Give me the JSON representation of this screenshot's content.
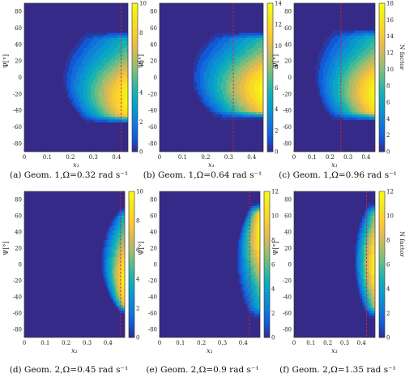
{
  "chart_data": [
    {
      "type": "heatmap",
      "caption": "(a) Geom. 1,Ω=0.32 rad s⁻¹",
      "xlabel": "x₁",
      "ylabel": "Ψ[°]",
      "xlim": [
        0,
        0.45
      ],
      "ylim": [
        -90,
        90
      ],
      "xticks": [
        "0",
        "0.1",
        "0.2",
        "0.3",
        "0.4"
      ],
      "yticks": [
        "-80",
        "-60",
        "-40",
        "-20",
        "0",
        "20",
        "40",
        "60",
        "80"
      ],
      "colorbar": {
        "min": 0,
        "max": 10,
        "ticks": [
          "0",
          "2",
          "4",
          "6",
          "8",
          "10"
        ],
        "label": ""
      },
      "dashed_line_x": 0.42,
      "region": {
        "x_onset_mid": 0.17,
        "x_onset_edge": 0.27,
        "psi_top": 55,
        "psi_bottom": -55,
        "peak_psi": -25,
        "peak_value": 10
      }
    },
    {
      "type": "heatmap",
      "caption": "(b) Geom. 1,Ω=0.64 rad s⁻¹",
      "xlabel": "x₁",
      "ylabel": "Ψ[°]",
      "xlim": [
        0,
        0.45
      ],
      "ylim": [
        -90,
        90
      ],
      "xticks": [
        "0",
        "0.1",
        "0.2",
        "0.3",
        "0.4"
      ],
      "yticks": [
        "-80",
        "-60",
        "-40",
        "-20",
        "0",
        "20",
        "40",
        "60",
        "80"
      ],
      "colorbar": {
        "min": 0,
        "max": 14,
        "ticks": [
          "0",
          "2",
          "4",
          "6",
          "8",
          "10",
          "12",
          "14"
        ],
        "label": ""
      },
      "dashed_line_x": 0.32,
      "region": {
        "x_onset_mid": 0.14,
        "x_onset_edge": 0.25,
        "psi_top": 55,
        "psi_bottom": -50,
        "peak_psi": -15,
        "peak_value": 14
      }
    },
    {
      "type": "heatmap",
      "caption": "(c) Geom. 1,Ω=0.96 rad s⁻¹",
      "xlabel": "x₁",
      "ylabel": "Ψ[°]",
      "xlim": [
        0,
        0.45
      ],
      "ylim": [
        -90,
        90
      ],
      "xticks": [
        "0",
        "0.1",
        "0.2",
        "0.3",
        "0.4"
      ],
      "yticks": [
        "-80",
        "-60",
        "-40",
        "-20",
        "0",
        "20",
        "40",
        "60",
        "80"
      ],
      "colorbar": {
        "min": 0,
        "max": 18,
        "ticks": [
          "0",
          "2",
          "4",
          "6",
          "8",
          "10",
          "12",
          "14",
          "16",
          "18"
        ],
        "label": "N factor"
      },
      "dashed_line_x": 0.26,
      "region": {
        "x_onset_mid": 0.12,
        "x_onset_edge": 0.22,
        "psi_top": 58,
        "psi_bottom": -52,
        "peak_psi": -20,
        "peak_value": 18
      }
    },
    {
      "type": "heatmap",
      "caption": "(d) Geom. 2,Ω=0.45 rad s⁻¹",
      "xlabel": "x₁",
      "ylabel": "Ψ[°]",
      "xlim": [
        0,
        0.48
      ],
      "ylim": [
        -90,
        90
      ],
      "xticks": [
        "0",
        "0.1",
        "0.2",
        "0.3",
        "0.4"
      ],
      "yticks": [
        "-80",
        "-60",
        "-40",
        "-20",
        "0",
        "20",
        "40",
        "60",
        "80"
      ],
      "colorbar": {
        "min": 0,
        "max": 10,
        "ticks": [
          "0",
          "2",
          "4",
          "6",
          "8",
          "10"
        ],
        "label": ""
      },
      "dashed_line_x": 0.46,
      "region": {
        "x_onset_mid": 0.37,
        "x_onset_edge": 0.46,
        "psi_top": 70,
        "psi_bottom": -60,
        "peak_psi": -20,
        "peak_value": 10
      }
    },
    {
      "type": "heatmap",
      "caption": "(e) Geom. 2,Ω=0.9 rad s⁻¹",
      "xlabel": "x₁",
      "ylabel": "Ψ[°]",
      "xlim": [
        0,
        0.48
      ],
      "ylim": [
        -90,
        90
      ],
      "xticks": [
        "0",
        "0.1",
        "0.2",
        "0.3",
        "0.4"
      ],
      "yticks": [
        "-80",
        "-60",
        "-40",
        "-20",
        "0",
        "20",
        "40",
        "60",
        "80"
      ],
      "colorbar": {
        "min": 0,
        "max": 12,
        "ticks": [
          "0",
          "2",
          "4",
          "6",
          "8",
          "10",
          "12"
        ],
        "label": ""
      },
      "dashed_line_x": 0.43,
      "region": {
        "x_onset_mid": 0.37,
        "x_onset_edge": 0.44,
        "psi_top": 75,
        "psi_bottom": -65,
        "peak_psi": 40,
        "peak_value": 12
      }
    },
    {
      "type": "heatmap",
      "caption": "(f) Geom. 2,Ω=1.35 rad s⁻¹",
      "xlabel": "x₁",
      "ylabel": "Ψ[°]",
      "xlim": [
        0,
        0.48
      ],
      "ylim": [
        -90,
        90
      ],
      "xticks": [
        "0",
        "0.1",
        "0.2",
        "0.3",
        "0.4"
      ],
      "yticks": [
        "-80",
        "-60",
        "-40",
        "-20",
        "0",
        "20",
        "40",
        "60",
        "80"
      ],
      "colorbar": {
        "min": 0,
        "max": 12,
        "ticks": [
          "0",
          "2",
          "4",
          "6",
          "8",
          "10",
          "12"
        ],
        "label": "N factor"
      },
      "dashed_line_x": 0.43,
      "region": {
        "x_onset_mid": 0.36,
        "x_onset_edge": 0.44,
        "psi_top": 75,
        "psi_bottom": -65,
        "peak_psi": 0,
        "peak_value": 12
      }
    }
  ]
}
